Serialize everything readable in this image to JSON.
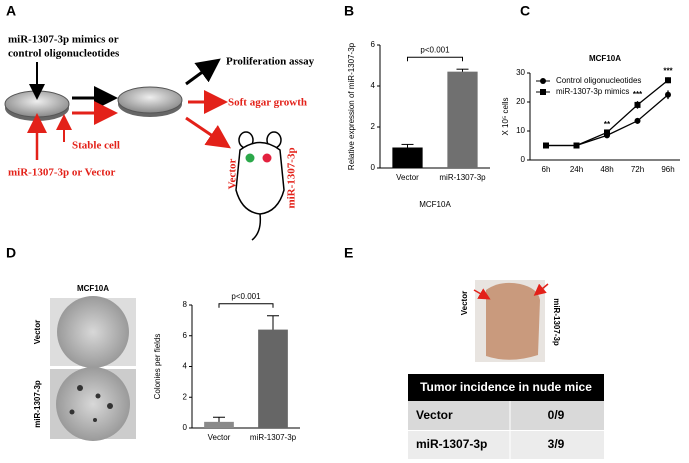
{
  "panel_labels": [
    "A",
    "B",
    "C",
    "D",
    "E"
  ],
  "diagram": {
    "treatment": [
      "miR-1307-3p mimics or",
      "control oligonucleotides"
    ],
    "stable_cell": "Stable cell",
    "transfection": "miR-1307-3p or Vector",
    "assays": [
      "Proliferation assay",
      "Soft agar growth"
    ],
    "mouse_labels": [
      "Vector",
      "miR-1307-3p"
    ]
  },
  "chart_data": [
    {
      "type": "bar",
      "ylabel": "Relative expression of miR-1307-3p",
      "xlabel": "MCF10A",
      "categories": [
        "Vector",
        "miR-1307-3p"
      ],
      "values": [
        1,
        4.7
      ],
      "errors": [
        0.15,
        0.12
      ],
      "colors": [
        "#000000",
        "#707070"
      ],
      "ylim": [
        0,
        6
      ],
      "yticks": [
        0,
        2,
        4,
        6
      ],
      "annotation": "p<0.001"
    },
    {
      "type": "line",
      "title": "MCF10A",
      "ylabel": "X 10⁵ cells",
      "categories": [
        "6h",
        "24h",
        "48h",
        "72h",
        "96h"
      ],
      "series": [
        {
          "name": "Control oligonucleotides",
          "color": "#000000",
          "marker": "circle",
          "values": [
            5,
            5,
            8.5,
            13.5,
            22.5
          ],
          "errors": [
            0.2,
            0.2,
            0.5,
            1,
            1.5
          ]
        },
        {
          "name": "miR-1307-3p mimics",
          "color": "#000000",
          "marker": "square",
          "values": [
            5,
            5,
            9.5,
            19,
            27.5
          ],
          "errors": [
            0.2,
            0.2,
            0.6,
            1.3,
            1
          ]
        }
      ],
      "ylim": [
        0,
        30
      ],
      "yticks": [
        0,
        10,
        20,
        30
      ],
      "legend": "upper left",
      "annotations": [
        {
          "x": "48h",
          "label": "**"
        },
        {
          "x": "72h",
          "label": "***"
        },
        {
          "x": "96h",
          "label": "***"
        }
      ]
    },
    {
      "type": "bar",
      "ylabel": "Colonies per fields",
      "categories": [
        "Vector",
        "miR-1307-3p"
      ],
      "values": [
        0.4,
        6.4
      ],
      "errors": [
        0.3,
        0.9
      ],
      "colors": [
        "#8a8a8a",
        "#666666"
      ],
      "ylim": [
        0,
        8
      ],
      "yticks": [
        0,
        2,
        4,
        6,
        8
      ],
      "annotation": "p<0.001"
    }
  ],
  "micrographs": {
    "title": "MCF10A",
    "rows": [
      "Vector",
      "miR-1307-3p"
    ]
  },
  "mouse_photo": {
    "labels": [
      "Vector",
      "miR-1307-3p"
    ]
  },
  "table": {
    "title": "Tumor incidence in nude mice",
    "rows": [
      [
        "Vector",
        "0/9"
      ],
      [
        "miR-1307-3p",
        "3/9"
      ]
    ]
  }
}
